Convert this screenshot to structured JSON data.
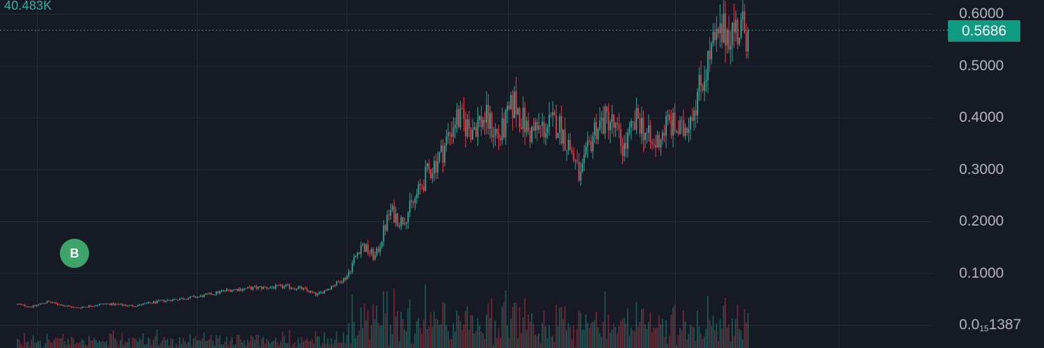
{
  "chart_data": {
    "type": "candlestick",
    "volume_label": "40.483K",
    "current_price": {
      "value": 0.5686,
      "label": "0.5686"
    },
    "marker": {
      "label": "B",
      "x_fraction": 0.1
    },
    "ylim": [
      0.0001,
      0.633
    ],
    "grid": true,
    "price_axis": {
      "ticks": [
        {
          "value": 0.6,
          "label": "0.6000"
        },
        {
          "value": 0.5,
          "label": "0.5000"
        },
        {
          "value": 0.4,
          "label": "0.4000"
        },
        {
          "value": 0.3,
          "label": "0.3000"
        },
        {
          "value": 0.2,
          "label": "0.2000"
        },
        {
          "value": 0.1,
          "label": "0.1000"
        }
      ],
      "bottom_label": {
        "prefix": "0.0",
        "subscript": "15",
        "suffix": "1387"
      }
    },
    "colors": {
      "up": "#22ab94",
      "down": "#f23645",
      "price_line": "#22ab94",
      "grid": "#262b38"
    },
    "close_anchors": [
      [
        0.0,
        0.04
      ],
      [
        0.02,
        0.035
      ],
      [
        0.04,
        0.045
      ],
      [
        0.08,
        0.033
      ],
      [
        0.12,
        0.041
      ],
      [
        0.16,
        0.037
      ],
      [
        0.2,
        0.047
      ],
      [
        0.25,
        0.055
      ],
      [
        0.29,
        0.068
      ],
      [
        0.33,
        0.072
      ],
      [
        0.37,
        0.074
      ],
      [
        0.39,
        0.07
      ],
      [
        0.41,
        0.058
      ],
      [
        0.43,
        0.075
      ],
      [
        0.45,
        0.092
      ],
      [
        0.47,
        0.155
      ],
      [
        0.49,
        0.13
      ],
      [
        0.51,
        0.22
      ],
      [
        0.525,
        0.2
      ],
      [
        0.54,
        0.23
      ],
      [
        0.56,
        0.29
      ],
      [
        0.58,
        0.33
      ],
      [
        0.6,
        0.4
      ],
      [
        0.62,
        0.38
      ],
      [
        0.64,
        0.4
      ],
      [
        0.66,
        0.36
      ],
      [
        0.68,
        0.43
      ],
      [
        0.7,
        0.37
      ],
      [
        0.72,
        0.38
      ],
      [
        0.74,
        0.39
      ],
      [
        0.76,
        0.33
      ],
      [
        0.77,
        0.28
      ],
      [
        0.79,
        0.38
      ],
      [
        0.81,
        0.4
      ],
      [
        0.83,
        0.34
      ],
      [
        0.85,
        0.4
      ],
      [
        0.87,
        0.34
      ],
      [
        0.89,
        0.39
      ],
      [
        0.91,
        0.37
      ],
      [
        0.93,
        0.44
      ],
      [
        0.95,
        0.53
      ],
      [
        0.97,
        0.57
      ],
      [
        1.0,
        0.5686
      ]
    ]
  }
}
